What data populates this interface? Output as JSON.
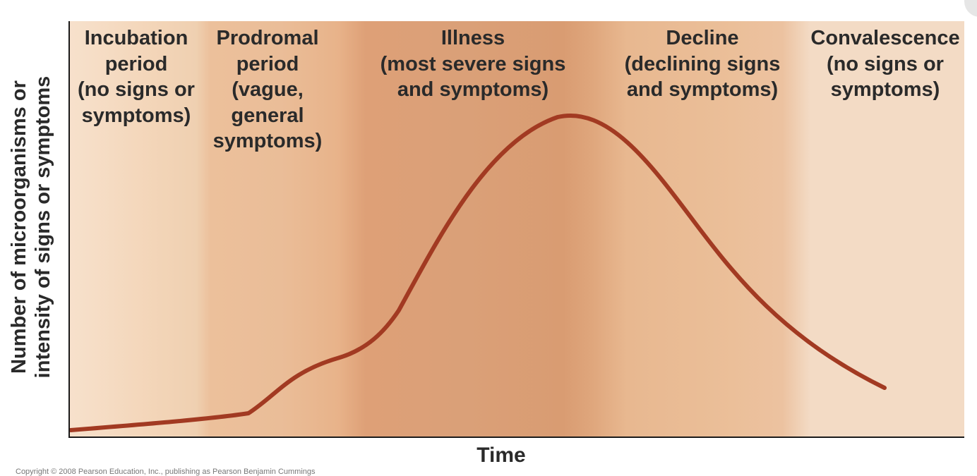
{
  "phases": {
    "incubation": "Incubation\nperiod\n(no signs or\nsymptoms)",
    "prodromal": "Prodromal\nperiod\n(vague,\ngeneral\nsymptoms)",
    "illness": "Illness\n(most severe signs\nand symptoms)",
    "decline": "Decline\n(declining signs\nand symptoms)",
    "convalescence": "Convalescence\n(no signs or\nsymptoms)"
  },
  "axes": {
    "y_label": "Number of microorganisms or\nintensity of signs or symptoms",
    "x_label": "Time"
  },
  "copyright": "Copyright © 2008 Pearson Education, Inc., publishing as Pearson Benjamin Cummings",
  "colors": {
    "curve": "#a23a22"
  }
}
